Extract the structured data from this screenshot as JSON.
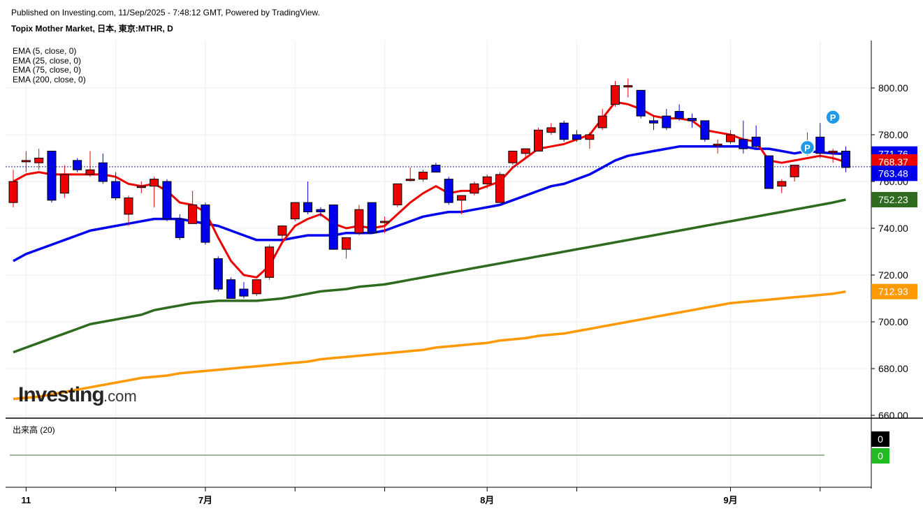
{
  "header": {
    "published": "Published on Investing.com, 11/Sep/2025 - 7:48:12 GMT, Powered by TradingView.",
    "symbol_title": "Topix Mother Market, 日本, 東京:MTHR, D"
  },
  "legend": [
    "EMA (5, close, 0)",
    "EMA (25, close, 0)",
    "EMA (75, close, 0)",
    "EMA (200, close, 0)"
  ],
  "volume_label": "出来高 (20)",
  "watermark": {
    "brand": "Investing",
    "suffix": ".com"
  },
  "colors": {
    "up": "#ee0000",
    "down": "#0000ee",
    "ema5": "#ee0000",
    "ema25": "#0000ee",
    "ema75": "#2e6b1e",
    "ema200": "#ff9900"
  },
  "chart_data": {
    "type": "candlestick",
    "ylim": [
      660,
      815
    ],
    "yticks": [
      "800.00",
      "780.00",
      "760.00",
      "740.00",
      "720.00",
      "700.00",
      "680.00",
      "660.00"
    ],
    "ytick_values": [
      800,
      780,
      760,
      740,
      720,
      700,
      680,
      660
    ],
    "xticks": [
      {
        "label": "11",
        "index": 1
      },
      {
        "label": "7月",
        "index": 15
      },
      {
        "label": "8月",
        "index": 37
      },
      {
        "label": "9月",
        "index": 56
      }
    ],
    "x_gridline_indices": [
      1,
      8,
      15,
      22,
      29,
      37,
      44,
      56,
      63
    ],
    "last_price": 766.3,
    "value_labels": [
      {
        "text": "771.76",
        "value": 771.76,
        "color": "#0000ee"
      },
      {
        "text": "768.37",
        "value": 768.37,
        "color": "#ee0000"
      },
      {
        "text": "763.48",
        "value": 763.48,
        "color": "#0000ee"
      },
      {
        "text": "752.23",
        "value": 752.23,
        "color": "#2e6b1e"
      },
      {
        "text": "712.93",
        "value": 712.93,
        "color": "#ff9900"
      }
    ],
    "candles": [
      {
        "o": 751,
        "h": 765,
        "l": 749,
        "c": 760
      },
      {
        "o": 769,
        "h": 773,
        "l": 764,
        "c": 769
      },
      {
        "o": 768,
        "h": 774,
        "l": 765,
        "c": 770
      },
      {
        "o": 773,
        "h": 773,
        "l": 751,
        "c": 752
      },
      {
        "o": 755,
        "h": 767,
        "l": 753,
        "c": 763
      },
      {
        "o": 769,
        "h": 770,
        "l": 764,
        "c": 765
      },
      {
        "o": 763,
        "h": 773,
        "l": 762,
        "c": 765
      },
      {
        "o": 768,
        "h": 772,
        "l": 759,
        "c": 760
      },
      {
        "o": 760,
        "h": 764,
        "l": 752,
        "c": 753
      },
      {
        "o": 746,
        "h": 754,
        "l": 741,
        "c": 753
      },
      {
        "o": 758,
        "h": 760,
        "l": 755,
        "c": 758
      },
      {
        "o": 758,
        "h": 762,
        "l": 749,
        "c": 761
      },
      {
        "o": 760,
        "h": 761,
        "l": 743,
        "c": 744
      },
      {
        "o": 744,
        "h": 746,
        "l": 735,
        "c": 736
      },
      {
        "o": 742,
        "h": 756,
        "l": 742,
        "c": 750
      },
      {
        "o": 750,
        "h": 751,
        "l": 733,
        "c": 734
      },
      {
        "o": 727,
        "h": 728,
        "l": 713,
        "c": 714
      },
      {
        "o": 718,
        "h": 719,
        "l": 710,
        "c": 710
      },
      {
        "o": 714,
        "h": 717,
        "l": 710,
        "c": 711
      },
      {
        "o": 712,
        "h": 718,
        "l": 711,
        "c": 718
      },
      {
        "o": 719,
        "h": 733,
        "l": 718,
        "c": 732
      },
      {
        "o": 737,
        "h": 741,
        "l": 735,
        "c": 741
      },
      {
        "o": 744,
        "h": 751,
        "l": 743,
        "c": 751
      },
      {
        "o": 751,
        "h": 760,
        "l": 746,
        "c": 747
      },
      {
        "o": 748,
        "h": 749,
        "l": 745,
        "c": 747
      },
      {
        "o": 750,
        "h": 750,
        "l": 731,
        "c": 731
      },
      {
        "o": 731,
        "h": 736,
        "l": 727,
        "c": 736
      },
      {
        "o": 738,
        "h": 750,
        "l": 737,
        "c": 748
      },
      {
        "o": 751,
        "h": 751,
        "l": 738,
        "c": 738
      },
      {
        "o": 743,
        "h": 745,
        "l": 738,
        "c": 743
      },
      {
        "o": 750,
        "h": 759,
        "l": 749,
        "c": 759
      },
      {
        "o": 761,
        "h": 766,
        "l": 760,
        "c": 761
      },
      {
        "o": 761,
        "h": 765,
        "l": 760,
        "c": 764
      },
      {
        "o": 767,
        "h": 768,
        "l": 764,
        "c": 764
      },
      {
        "o": 761,
        "h": 762,
        "l": 750,
        "c": 751
      },
      {
        "o": 752,
        "h": 754,
        "l": 746,
        "c": 754
      },
      {
        "o": 755,
        "h": 760,
        "l": 754,
        "c": 759
      },
      {
        "o": 759,
        "h": 763,
        "l": 757,
        "c": 762
      },
      {
        "o": 751,
        "h": 764,
        "l": 751,
        "c": 763
      },
      {
        "o": 768,
        "h": 773,
        "l": 767,
        "c": 773
      },
      {
        "o": 772,
        "h": 774,
        "l": 770,
        "c": 774
      },
      {
        "o": 773,
        "h": 783,
        "l": 773,
        "c": 782
      },
      {
        "o": 781,
        "h": 785,
        "l": 780,
        "c": 783
      },
      {
        "o": 785,
        "h": 786,
        "l": 777,
        "c": 778
      },
      {
        "o": 780,
        "h": 782,
        "l": 777,
        "c": 778
      },
      {
        "o": 778,
        "h": 781,
        "l": 774,
        "c": 780
      },
      {
        "o": 783,
        "h": 791,
        "l": 782,
        "c": 788
      },
      {
        "o": 793,
        "h": 803,
        "l": 792,
        "c": 801
      },
      {
        "o": 801,
        "h": 804,
        "l": 796,
        "c": 801
      },
      {
        "o": 799,
        "h": 799,
        "l": 787,
        "c": 788
      },
      {
        "o": 786,
        "h": 788,
        "l": 782,
        "c": 785
      },
      {
        "o": 788,
        "h": 791,
        "l": 782,
        "c": 783
      },
      {
        "o": 790,
        "h": 793,
        "l": 786,
        "c": 787
      },
      {
        "o": 787,
        "h": 789,
        "l": 783,
        "c": 786
      },
      {
        "o": 786,
        "h": 786,
        "l": 777,
        "c": 778
      },
      {
        "o": 776,
        "h": 778,
        "l": 772,
        "c": 776
      },
      {
        "o": 777,
        "h": 782,
        "l": 776,
        "c": 780
      },
      {
        "o": 778,
        "h": 786,
        "l": 772,
        "c": 774
      },
      {
        "o": 779,
        "h": 784,
        "l": 774,
        "c": 775
      },
      {
        "o": 771,
        "h": 771,
        "l": 757,
        "c": 757
      },
      {
        "o": 758,
        "h": 761,
        "l": 755,
        "c": 760
      },
      {
        "o": 762,
        "h": 767,
        "l": 760,
        "c": 767
      },
      {
        "o": 774,
        "h": 781,
        "l": 771,
        "c": 775
      },
      {
        "o": 779,
        "h": 785,
        "l": 770,
        "c": 772
      },
      {
        "o": 773,
        "h": 774,
        "l": 768,
        "c": 773
      },
      {
        "o": 773,
        "h": 775,
        "l": 764,
        "c": 766
      }
    ],
    "ema5": [
      760,
      763,
      764,
      763,
      763,
      763,
      763,
      763,
      762,
      759,
      758,
      759,
      756,
      751,
      750,
      747,
      736,
      726,
      720,
      719,
      724,
      734,
      741,
      744,
      746,
      742,
      740,
      741,
      740,
      741,
      746,
      751,
      755,
      758,
      755,
      756,
      756,
      758,
      760,
      766,
      770,
      774,
      775,
      776,
      778,
      780,
      787,
      794,
      793,
      791,
      788,
      787,
      787,
      786,
      782,
      781,
      780,
      778,
      777,
      769,
      768,
      769,
      770,
      771,
      770,
      768.37
    ],
    "ema25": [
      726,
      729,
      731,
      733,
      735,
      737,
      739,
      740,
      741,
      742,
      743,
      744,
      744,
      744,
      743,
      742,
      741,
      739,
      737,
      735,
      735,
      735,
      736,
      737,
      737,
      737,
      738,
      738,
      738,
      739,
      741,
      743,
      745,
      746,
      747,
      747,
      748,
      749,
      750,
      752,
      754,
      756,
      758,
      759,
      761,
      763,
      766,
      769,
      771,
      772,
      773,
      774,
      775,
      775,
      775,
      775,
      775,
      775,
      774,
      774,
      773,
      772,
      773,
      772.5,
      772,
      771.76
    ],
    "ema75": [
      687,
      689,
      691,
      693,
      695,
      697,
      699,
      700,
      701,
      702,
      703,
      705,
      706,
      707,
      708,
      708.5,
      709,
      709,
      709,
      709,
      709.5,
      710,
      711,
      712,
      713,
      713.5,
      714,
      715,
      715.5,
      716,
      717,
      718,
      719,
      720,
      721,
      722,
      723,
      724,
      725,
      726,
      727,
      728,
      729,
      730,
      731,
      732,
      733,
      734,
      735,
      736,
      737,
      738,
      739,
      740,
      741,
      742,
      743,
      744,
      745,
      746,
      747,
      748,
      749,
      750,
      751,
      752.23
    ],
    "ema200": [
      667,
      667.5,
      668,
      669,
      670,
      671,
      672,
      673,
      674,
      675,
      676,
      676.5,
      677,
      678,
      678.5,
      679,
      679.5,
      680,
      680.5,
      681,
      681.5,
      682,
      682.5,
      683,
      684,
      684.5,
      685,
      685.5,
      686,
      686.5,
      687,
      687.5,
      688,
      689,
      689.5,
      690,
      690.5,
      691,
      692,
      692.5,
      693,
      694,
      694.5,
      695,
      696,
      697,
      698,
      699,
      700,
      701,
      702,
      703,
      704,
      705,
      706,
      707,
      708,
      708.5,
      709,
      709.5,
      710,
      710.5,
      711,
      711.5,
      712,
      712.93
    ],
    "markers": [
      {
        "label": "P",
        "index": 62,
        "value": 774.5
      },
      {
        "label": "P",
        "index": 64,
        "value": 787.5
      }
    ],
    "volume": {
      "readouts": [
        {
          "text": "0",
          "value": 0,
          "color": "#000000"
        },
        {
          "text": "0",
          "value": 0,
          "color": "#22bb22"
        }
      ]
    }
  }
}
